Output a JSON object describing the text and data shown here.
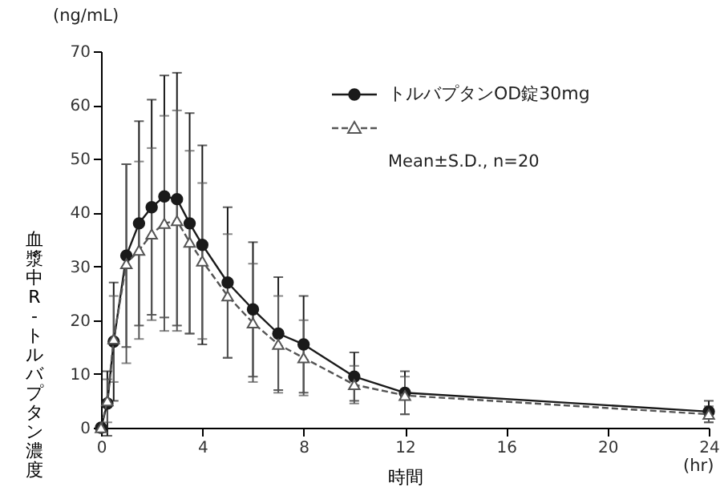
{
  "chart_data": {
    "type": "line",
    "xlabel": "時間",
    "ylabel": "血漿中R-トルバプタン濃度",
    "annotations": [
      "(ng/mL)",
      "(hr)",
      "Mean±S.D., n=20"
    ],
    "x": [
      0,
      0.25,
      0.5,
      1,
      1.5,
      2,
      2.5,
      3,
      3.5,
      4,
      5,
      6,
      7,
      8,
      10,
      12,
      24
    ],
    "series": [
      {
        "name": "トルバプタンOD錠30mg",
        "color": "#1a1a1a",
        "marker": "circle",
        "line_style": "solid",
        "values": [
          0,
          4.5,
          16,
          32,
          38,
          41,
          43,
          42.5,
          38,
          34,
          27,
          22,
          17.5,
          15.5,
          9.5,
          6.5,
          3
        ],
        "errors": [
          null,
          6,
          11,
          17,
          19,
          20,
          22.5,
          23.5,
          20.5,
          18.5,
          14,
          12.5,
          10.5,
          9,
          4.5,
          4,
          2
        ]
      },
      {
        "color": "#555555",
        "marker": "triangle",
        "line_style": "dashed",
        "values": [
          0,
          5,
          16.5,
          30.5,
          33,
          36,
          38,
          38.5,
          34.5,
          31,
          24.5,
          19.5,
          15.5,
          13,
          8,
          6,
          2.5
        ],
        "errors": [
          null,
          4,
          8,
          18.5,
          16.5,
          16,
          20,
          20.5,
          17,
          14.5,
          11.5,
          11,
          9,
          7,
          3.5,
          3.5,
          1.5
        ]
      }
    ],
    "xlim": [
      0,
      24
    ],
    "xticks": [
      0,
      4,
      8,
      12,
      16,
      20,
      24
    ],
    "ylim": [
      0,
      70
    ],
    "yticks": [
      0,
      10,
      20,
      30,
      40,
      50,
      60,
      70
    ],
    "grid": false,
    "legend": "top right"
  }
}
